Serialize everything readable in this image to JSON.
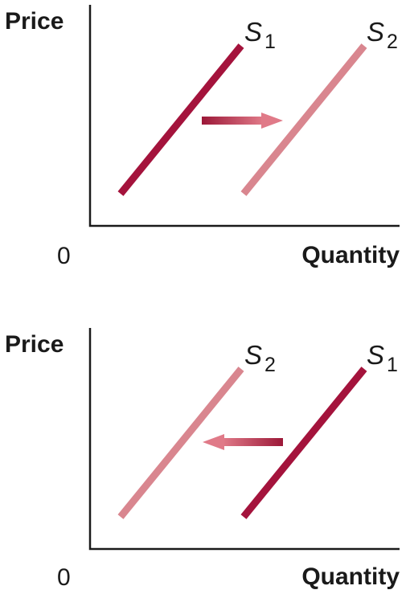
{
  "colors": {
    "original_curve": "#a4133c",
    "shifted_curve": "#d9868f",
    "arrow_start": "#9c1838",
    "arrow_end": "#e07a88",
    "axis": "#1a1a1a"
  },
  "panels": [
    {
      "y_axis_label": "Price",
      "x_axis_label": "Quantity",
      "origin_label": "0",
      "curves": [
        {
          "letter": "S",
          "subscript": "1",
          "role": "original"
        },
        {
          "letter": "S",
          "subscript": "2",
          "role": "shifted"
        }
      ],
      "shift_direction": "right"
    },
    {
      "y_axis_label": "Price",
      "x_axis_label": "Quantity",
      "origin_label": "0",
      "curves": [
        {
          "letter": "S",
          "subscript": "2",
          "role": "shifted"
        },
        {
          "letter": "S",
          "subscript": "1",
          "role": "original"
        }
      ],
      "shift_direction": "left"
    }
  ]
}
